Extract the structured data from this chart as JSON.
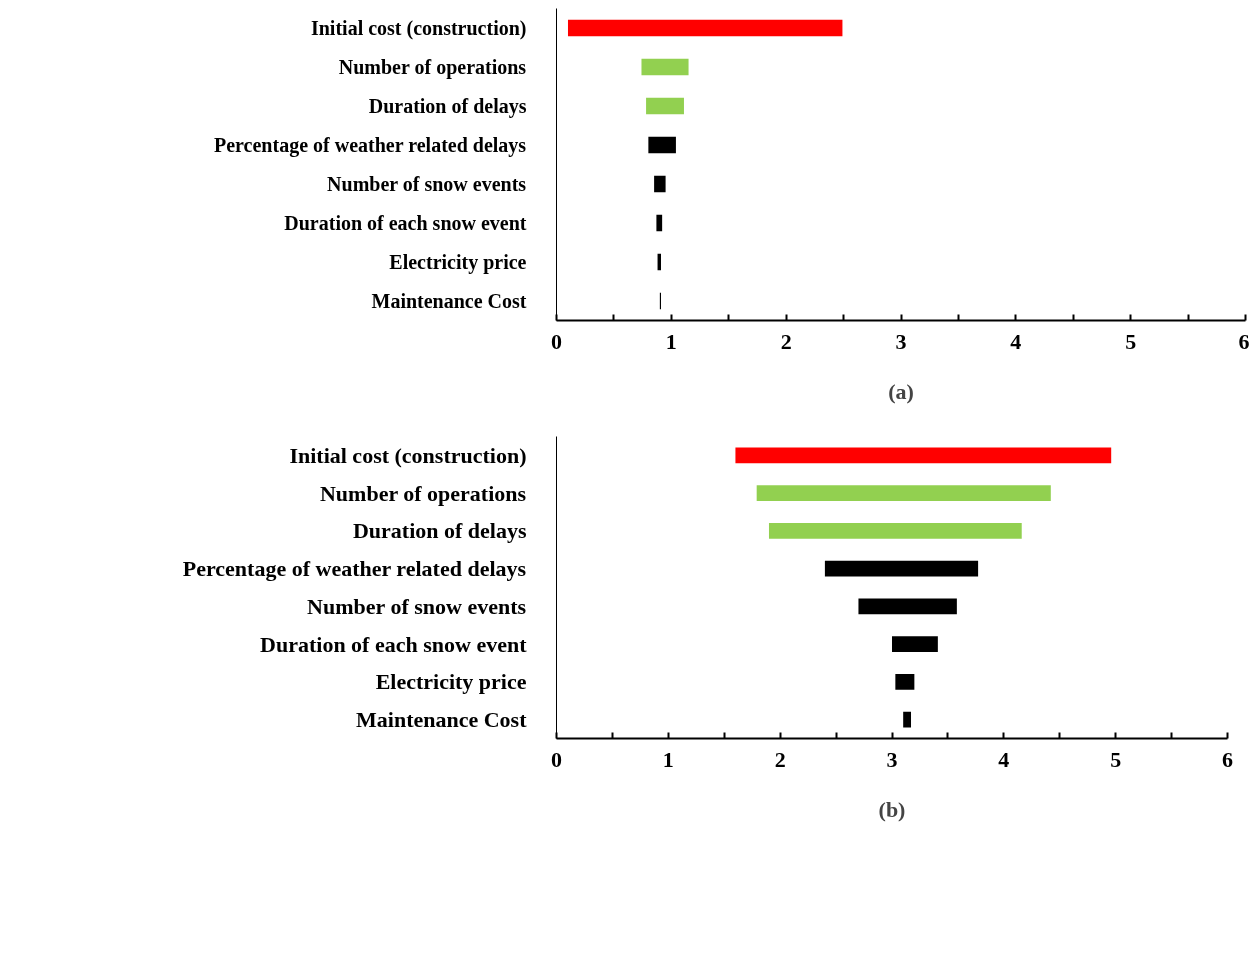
{
  "chart_data": [
    {
      "type": "bar",
      "orientation": "horizontal",
      "title": "(a)",
      "categories": [
        "Initial cost (construction)",
        "Number of operations",
        "Duration of delays",
        "Percentage of weather related delays",
        "Number of snow events",
        "Duration of each snow event",
        "Electricity price",
        "Maintenance Cost"
      ],
      "base": [
        0.1,
        0.74,
        0.78,
        0.8,
        0.85,
        0.87,
        0.88,
        0.9
      ],
      "values": [
        2.39,
        0.41,
        0.33,
        0.24,
        0.1,
        0.05,
        0.03,
        0.01
      ],
      "colors": [
        "#ff0000",
        "#92d050",
        "#92d050",
        "#000000",
        "#000000",
        "#000000",
        "#000000",
        "#000000"
      ],
      "xlim": [
        0,
        6
      ],
      "xticks": [
        0,
        {
          "value": 0.5,
          "label": null
        },
        1,
        {
          "value": 1.5,
          "label": null
        },
        2,
        {
          "value": 2.5,
          "label": null
        },
        3,
        {
          "value": 3.5,
          "label": null
        },
        4,
        {
          "value": 4.5,
          "label": null
        },
        5,
        {
          "value": 5.5,
          "label": null
        },
        6
      ],
      "grid": false
    },
    {
      "type": "bar",
      "orientation": "horizontal",
      "title": "(b)",
      "categories": [
        "Initial cost (construction)",
        "Number of operations",
        "Duration of delays",
        "Percentage of weather related delays",
        "Number of snow events",
        "Duration of each snow event",
        "Electricity price",
        "Maintenance Cost"
      ],
      "base": [
        1.6,
        1.79,
        1.9,
        2.4,
        2.7,
        3.0,
        3.03,
        3.1
      ],
      "values": [
        3.36,
        2.63,
        2.26,
        1.37,
        0.88,
        0.41,
        0.17,
        0.07
      ],
      "colors": [
        "#ff0000",
        "#92d050",
        "#92d050",
        "#000000",
        "#000000",
        "#000000",
        "#000000",
        "#000000"
      ],
      "xlim": [
        0,
        6
      ],
      "xticks": [
        0,
        {
          "value": 0.5,
          "label": null
        },
        1,
        {
          "value": 1.5,
          "label": null
        },
        2,
        {
          "value": 2.5,
          "label": null
        },
        3,
        {
          "value": 3.5,
          "label": null
        },
        4,
        {
          "value": 4.5,
          "label": null
        },
        5,
        {
          "value": 5.5,
          "label": null
        },
        6
      ],
      "grid": false
    }
  ]
}
